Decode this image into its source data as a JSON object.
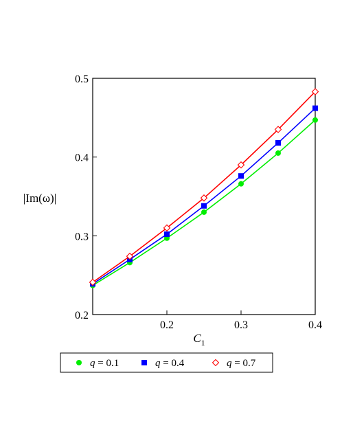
{
  "chart_data": {
    "type": "line",
    "xlabel": "C",
    "xlabel_subscript": "1",
    "ylabel": "|Im(ω)|",
    "xlim": [
      0.1,
      0.4
    ],
    "ylim": [
      0.2,
      0.5
    ],
    "x_ticks": [
      0.2,
      0.3,
      0.4
    ],
    "x_tick_labels": [
      "0.2",
      "0.3",
      "0.4"
    ],
    "y_ticks": [
      0.2,
      0.3,
      0.4,
      0.5
    ],
    "y_tick_labels": [
      "0.2",
      "0.3",
      "0.4",
      "0.5"
    ],
    "grid": false,
    "legend_position": "bottom",
    "x": [
      0.1,
      0.15,
      0.2,
      0.25,
      0.3,
      0.35,
      0.4
    ],
    "series": [
      {
        "name": "q = 0.1",
        "name_var": "q",
        "name_value": " = 0.1",
        "color": "#00ee00",
        "marker": "circle",
        "values": [
          0.237,
          0.266,
          0.297,
          0.33,
          0.366,
          0.405,
          0.447
        ]
      },
      {
        "name": "q = 0.4",
        "name_var": "q",
        "name_value": " = 0.4",
        "color": "#0000ff",
        "marker": "square",
        "values": [
          0.239,
          0.27,
          0.302,
          0.338,
          0.376,
          0.418,
          0.462
        ]
      },
      {
        "name": "q = 0.7",
        "name_var": "q",
        "name_value": " = 0.7",
        "color": "#ff0000",
        "marker": "diamond",
        "values": [
          0.241,
          0.274,
          0.31,
          0.348,
          0.39,
          0.435,
          0.483
        ]
      }
    ]
  }
}
